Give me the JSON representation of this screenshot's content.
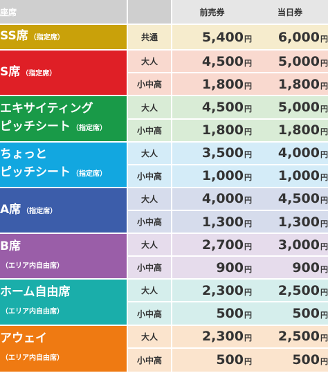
{
  "header": {
    "seat": "座席",
    "advance": "前売券",
    "day": "当日券"
  },
  "yen": "円",
  "rows": [
    {
      "name": "SS席",
      "sub": "（指定席）",
      "line2": "",
      "color": "#c9a10a",
      "tiers": [
        {
          "type": "共通",
          "advance": "5,400",
          "day": "6,000",
          "tint": "#f6eccd"
        }
      ]
    },
    {
      "name": "S席",
      "sub": "（指定席）",
      "line2": "",
      "color": "#df1f26",
      "tiers": [
        {
          "type": "大人",
          "advance": "4,500",
          "day": "5,000",
          "tint": "#f9d9cf"
        },
        {
          "type": "小中高",
          "advance": "1,800",
          "day": "1,800",
          "tint": "#f9d9cf"
        }
      ]
    },
    {
      "name": "エキサイティング",
      "sub": "",
      "line2": "ピッチシート",
      "line2sub": "（指定席）",
      "color": "#199a48",
      "tiers": [
        {
          "type": "大人",
          "advance": "4,500",
          "day": "5,000",
          "tint": "#d9ecd6"
        },
        {
          "type": "小中高",
          "advance": "1,800",
          "day": "1,800",
          "tint": "#d9ecd6"
        }
      ]
    },
    {
      "name": "ちょっと",
      "sub": "",
      "line2": "ピッチシート",
      "line2sub": "（指定席）",
      "color": "#12a7e0",
      "tiers": [
        {
          "type": "大人",
          "advance": "3,500",
          "day": "4,000",
          "tint": "#d4ecf8"
        },
        {
          "type": "小中高",
          "advance": "1,000",
          "day": "1,000",
          "tint": "#d4ecf8"
        }
      ]
    },
    {
      "name": "A席",
      "sub": "（指定席）",
      "line2": "",
      "color": "#3c5daa",
      "tiers": [
        {
          "type": "大人",
          "advance": "4,000",
          "day": "4,500",
          "tint": "#d6dcec"
        },
        {
          "type": "小中高",
          "advance": "1,300",
          "day": "1,300",
          "tint": "#d6dcec"
        }
      ]
    },
    {
      "name": "B席",
      "sub": "",
      "line2": "",
      "line2sub": "（エリア内自由席）",
      "color": "#9a5ea8",
      "tiers": [
        {
          "type": "大人",
          "advance": "2,700",
          "day": "3,000",
          "tint": "#e6dcec"
        },
        {
          "type": "小中高",
          "advance": "900",
          "day": "900",
          "tint": "#e6dcec"
        }
      ]
    },
    {
      "name": "ホーム自由席",
      "sub": "",
      "line2": "",
      "line2sub": "（エリア内自由席）",
      "color": "#1aaeaa",
      "tiers": [
        {
          "type": "大人",
          "advance": "2,300",
          "day": "2,500",
          "tint": "#d5eeec"
        },
        {
          "type": "小中高",
          "advance": "500",
          "day": "500",
          "tint": "#d5eeec"
        }
      ]
    },
    {
      "name": "アウェイ",
      "sub": "",
      "line2": "",
      "line2sub": "（エリア内自由席）",
      "color": "#ef7a12",
      "tiers": [
        {
          "type": "大人",
          "advance": "2,300",
          "day": "2,500",
          "tint": "#fbe4cd"
        },
        {
          "type": "小中高",
          "advance": "500",
          "day": "500",
          "tint": "#fbe4cd"
        }
      ]
    }
  ]
}
